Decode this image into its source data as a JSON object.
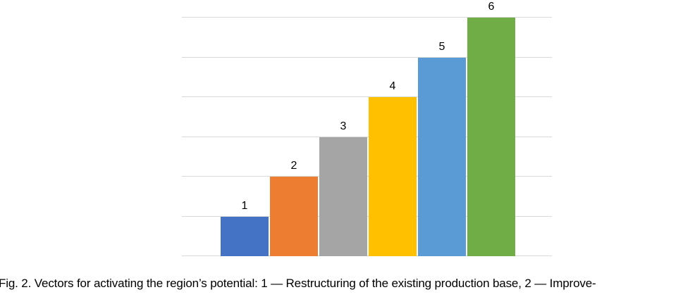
{
  "figure": {
    "caption": "Fig. 2. Vectors for activating the region’s potential: 1 — Restructuring of the existing production base, 2 — Improve-"
  },
  "chart_data": {
    "type": "bar",
    "categories": [
      "1",
      "2",
      "3",
      "4",
      "5",
      "6"
    ],
    "values": [
      1,
      2,
      3,
      4,
      5,
      6
    ],
    "data_labels": [
      "1",
      "2",
      "3",
      "4",
      "5",
      "6"
    ],
    "title": "",
    "xlabel": "",
    "ylabel": "",
    "ylim": [
      0,
      6
    ],
    "gridline_values": [
      0,
      1,
      2,
      3,
      4,
      5,
      6
    ],
    "grid": "horizontal",
    "legend": "none",
    "axis_tick_labels": "none",
    "bar_colors": [
      "#4472C4",
      "#ED7D31",
      "#A5A5A5",
      "#FFC000",
      "#5B9BD5",
      "#70AD47"
    ],
    "gridline_color": "#D9D9D9",
    "label_color": "#000000",
    "background_color": "#FFFFFF"
  }
}
